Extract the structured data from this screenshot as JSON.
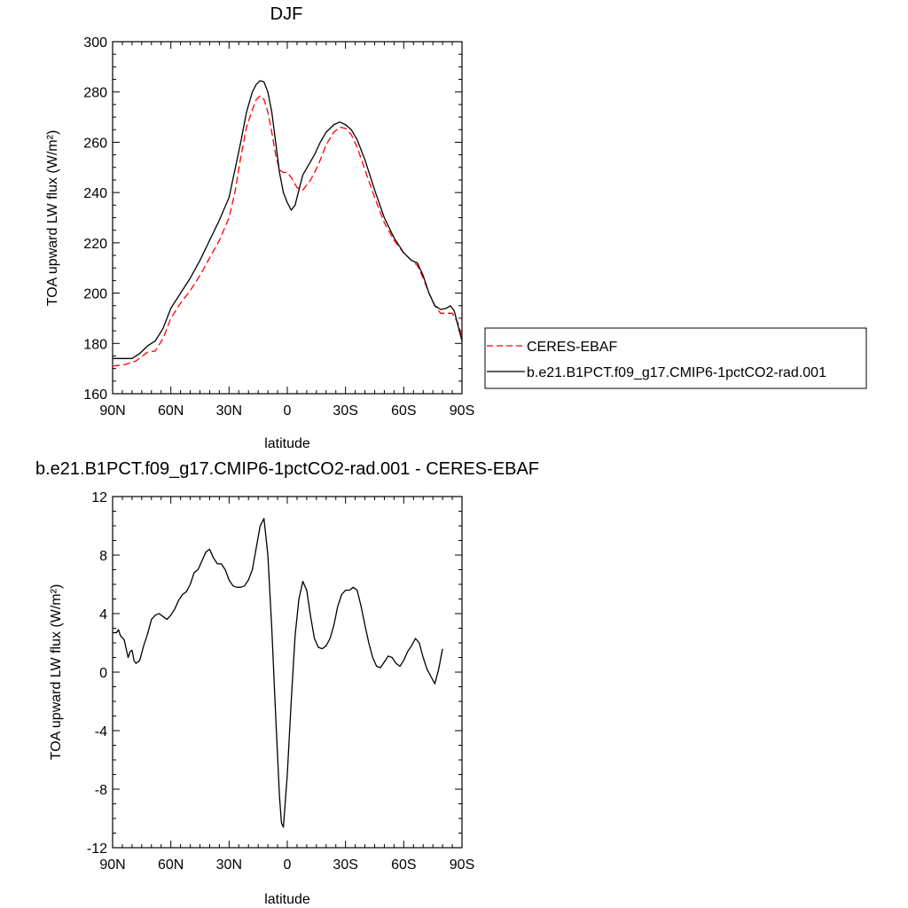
{
  "chart_data": [
    {
      "type": "line",
      "title": "DJF",
      "xlabel": "latitude",
      "ylabel": "TOA upward LW flux (W/m²)",
      "xlim": [
        90,
        -90
      ],
      "ylim": [
        160,
        300
      ],
      "x_ticks": [
        90,
        60,
        30,
        0,
        -30,
        -60,
        -90
      ],
      "x_tick_labels": [
        "90N",
        "60N",
        "30N",
        "0",
        "30S",
        "60S",
        "90S"
      ],
      "y_ticks": [
        160,
        180,
        200,
        220,
        240,
        260,
        280,
        300
      ],
      "y_tick_labels": [
        "160",
        "180",
        "200",
        "220",
        "240",
        "260",
        "280",
        "300"
      ],
      "grid": false,
      "legend": "right",
      "series": [
        {
          "name": "CERES-EBAF",
          "color": "#ff0000",
          "dash": "dashed",
          "points": [
            [
              90,
              171
            ],
            [
              84,
              171.5
            ],
            [
              78,
              173
            ],
            [
              72,
              176.5
            ],
            [
              68,
              177
            ],
            [
              64,
              182
            ],
            [
              60,
              190
            ],
            [
              55,
              196
            ],
            [
              50,
              201
            ],
            [
              45,
              207
            ],
            [
              40,
              214
            ],
            [
              35,
              221
            ],
            [
              30,
              230
            ],
            [
              27,
              240
            ],
            [
              24,
              254
            ],
            [
              21,
              266
            ],
            [
              18,
              273
            ],
            [
              16,
              277
            ],
            [
              14,
              278.5
            ],
            [
              12,
              277
            ],
            [
              10,
              272
            ],
            [
              8,
              264
            ],
            [
              6,
              255
            ],
            [
              4,
              249
            ],
            [
              2,
              248
            ],
            [
              0,
              248
            ],
            [
              -2,
              246
            ],
            [
              -5,
              242
            ],
            [
              -8,
              241
            ],
            [
              -12,
              245
            ],
            [
              -16,
              251
            ],
            [
              -20,
              259
            ],
            [
              -24,
              264
            ],
            [
              -27,
              266
            ],
            [
              -30,
              265.5
            ],
            [
              -33,
              263
            ],
            [
              -36,
              258
            ],
            [
              -40,
              249
            ],
            [
              -45,
              238
            ],
            [
              -50,
              228
            ],
            [
              -55,
              221
            ],
            [
              -60,
              216
            ],
            [
              -64,
              213
            ],
            [
              -67,
              211
            ],
            [
              -70,
              206
            ],
            [
              -73,
              200
            ],
            [
              -76,
              195
            ],
            [
              -79,
              192
            ],
            [
              -82,
              192
            ],
            [
              -85,
              192
            ],
            [
              -88,
              188
            ],
            [
              -90,
              182
            ]
          ]
        },
        {
          "name": "b.e21.B1PCT.f09_g17.CMIP6-1pctCO2-rad.001",
          "color": "#000000",
          "dash": "solid",
          "points": [
            [
              90,
              174
            ],
            [
              84,
              174
            ],
            [
              80,
              174
            ],
            [
              76,
              176
            ],
            [
              72,
              179
            ],
            [
              68,
              181
            ],
            [
              64,
              186
            ],
            [
              60,
              194
            ],
            [
              55,
              200
            ],
            [
              50,
              206
            ],
            [
              45,
              213
            ],
            [
              40,
              221
            ],
            [
              35,
              229
            ],
            [
              30,
              238
            ],
            [
              27,
              249
            ],
            [
              24,
              260
            ],
            [
              21,
              272
            ],
            [
              18,
              280
            ],
            [
              16,
              283
            ],
            [
              14,
              284.5
            ],
            [
              12,
              284
            ],
            [
              10,
              280
            ],
            [
              8,
              272
            ],
            [
              6,
              260
            ],
            [
              4,
              248
            ],
            [
              2,
              240
            ],
            [
              0,
              236
            ],
            [
              -2,
              233
            ],
            [
              -4,
              235
            ],
            [
              -6,
              241
            ],
            [
              -8,
              247
            ],
            [
              -11,
              251
            ],
            [
              -14,
              255
            ],
            [
              -17,
              260
            ],
            [
              -20,
              264
            ],
            [
              -24,
              267
            ],
            [
              -27,
              268
            ],
            [
              -30,
              267
            ],
            [
              -33,
              265
            ],
            [
              -36,
              261
            ],
            [
              -40,
              253
            ],
            [
              -45,
              241
            ],
            [
              -50,
              230
            ],
            [
              -55,
              222
            ],
            [
              -60,
              216
            ],
            [
              -64,
              213
            ],
            [
              -67,
              212
            ],
            [
              -70,
              207
            ],
            [
              -73,
              200
            ],
            [
              -76,
              195
            ],
            [
              -79,
              193.5
            ],
            [
              -82,
              194
            ],
            [
              -84,
              195
            ],
            [
              -86,
              193
            ],
            [
              -88,
              187
            ],
            [
              -90,
              181
            ]
          ]
        }
      ]
    },
    {
      "type": "line",
      "title": "b.e21.B1PCT.f09_g17.CMIP6-1pctCO2-rad.001 - CERES-EBAF",
      "xlabel": "latitude",
      "ylabel": "TOA upward LW flux (W/m²)",
      "xlim": [
        90,
        -90
      ],
      "ylim": [
        -12,
        12
      ],
      "x_ticks": [
        90,
        60,
        30,
        0,
        -30,
        -60,
        -90
      ],
      "x_tick_labels": [
        "90N",
        "60N",
        "30N",
        "0",
        "30S",
        "60S",
        "90S"
      ],
      "y_ticks": [
        -12,
        -8,
        -4,
        0,
        4,
        8,
        12
      ],
      "y_tick_labels": [
        "-12",
        "-8",
        "-4",
        "0",
        "4",
        "8",
        "12"
      ],
      "grid": false,
      "legend": "none",
      "series": [
        {
          "color": "#000000",
          "dash": "solid",
          "points": [
            [
              90,
              2.7
            ],
            [
              88,
              2.7
            ],
            [
              87,
              2.9
            ],
            [
              86,
              2.5
            ],
            [
              84,
              2.2
            ],
            [
              82,
              1.0
            ],
            [
              81,
              1.4
            ],
            [
              80,
              1.5
            ],
            [
              79,
              0.8
            ],
            [
              78,
              0.6
            ],
            [
              76,
              0.8
            ],
            [
              74,
              1.8
            ],
            [
              72,
              2.6
            ],
            [
              70,
              3.6
            ],
            [
              68,
              3.9
            ],
            [
              66,
              4.0
            ],
            [
              64,
              3.8
            ],
            [
              62,
              3.6
            ],
            [
              60,
              3.9
            ],
            [
              58,
              4.3
            ],
            [
              56,
              4.9
            ],
            [
              54,
              5.3
            ],
            [
              52,
              5.5
            ],
            [
              50,
              6.0
            ],
            [
              48,
              6.8
            ],
            [
              46,
              7.0
            ],
            [
              44,
              7.6
            ],
            [
              42,
              8.2
            ],
            [
              40,
              8.4
            ],
            [
              38,
              7.8
            ],
            [
              36,
              7.4
            ],
            [
              34,
              7.4
            ],
            [
              32,
              7.0
            ],
            [
              30,
              6.3
            ],
            [
              28,
              5.9
            ],
            [
              26,
              5.8
            ],
            [
              24,
              5.8
            ],
            [
              22,
              5.9
            ],
            [
              20,
              6.3
            ],
            [
              18,
              7.0
            ],
            [
              16,
              8.5
            ],
            [
              14,
              10.0
            ],
            [
              12,
              10.5
            ],
            [
              10,
              8.0
            ],
            [
              8,
              3.0
            ],
            [
              6,
              -3.0
            ],
            [
              4,
              -8.5
            ],
            [
              3,
              -10.3
            ],
            [
              2,
              -10.6
            ],
            [
              0,
              -7.0
            ],
            [
              -2,
              -2.0
            ],
            [
              -4,
              2.5
            ],
            [
              -6,
              5.0
            ],
            [
              -8,
              6.2
            ],
            [
              -10,
              5.6
            ],
            [
              -12,
              3.8
            ],
            [
              -14,
              2.3
            ],
            [
              -16,
              1.7
            ],
            [
              -18,
              1.6
            ],
            [
              -20,
              1.8
            ],
            [
              -22,
              2.3
            ],
            [
              -24,
              3.2
            ],
            [
              -26,
              4.5
            ],
            [
              -28,
              5.3
            ],
            [
              -30,
              5.6
            ],
            [
              -32,
              5.6
            ],
            [
              -34,
              5.8
            ],
            [
              -36,
              5.6
            ],
            [
              -38,
              4.5
            ],
            [
              -40,
              3.2
            ],
            [
              -42,
              2.0
            ],
            [
              -44,
              1.0
            ],
            [
              -46,
              0.4
            ],
            [
              -48,
              0.3
            ],
            [
              -50,
              0.7
            ],
            [
              -52,
              1.1
            ],
            [
              -54,
              1.0
            ],
            [
              -56,
              0.6
            ],
            [
              -58,
              0.4
            ],
            [
              -60,
              0.8
            ],
            [
              -62,
              1.4
            ],
            [
              -64,
              1.8
            ],
            [
              -66,
              2.3
            ],
            [
              -68,
              2.0
            ],
            [
              -70,
              1.0
            ],
            [
              -72,
              0.2
            ],
            [
              -74,
              -0.3
            ],
            [
              -76,
              -0.8
            ],
            [
              -78,
              0.2
            ],
            [
              -80,
              1.6
            ]
          ]
        }
      ]
    }
  ],
  "panels": [
    {
      "title": "DJF",
      "xlabel": "latitude",
      "ylabel": "TOA upward LW flux (W/m²)"
    },
    {
      "title": "b.e21.B1PCT.f09_g17.CMIP6-1pctCO2-rad.001 - CERES-EBAF",
      "xlabel": "latitude",
      "ylabel": "TOA upward LW flux (W/m²)"
    }
  ],
  "legend": {
    "items": [
      {
        "label": "CERES-EBAF",
        "color": "#ff0000",
        "dash": "dashed"
      },
      {
        "label": "b.e21.B1PCT.f09_g17.CMIP6-1pctCO2-rad.001",
        "color": "#000000",
        "dash": "solid"
      }
    ]
  }
}
